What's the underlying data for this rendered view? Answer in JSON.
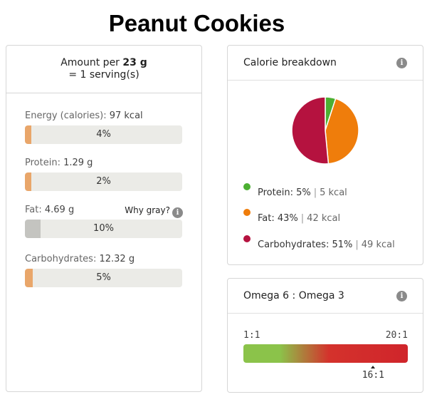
{
  "page": {
    "title": "Peanut Cookies"
  },
  "serving": {
    "line1_prefix": "Amount per ",
    "amount": "23 g",
    "line2": "= 1 serving(s)"
  },
  "nutrients": [
    {
      "label": "Energy (calories): ",
      "value": "97 kcal",
      "percent": "4%",
      "fill_fraction": 0.04,
      "color": "#e9a66a"
    },
    {
      "label": "Protein: ",
      "value": "1.29 g",
      "percent": "2%",
      "fill_fraction": 0.02,
      "color": "#e9a66a"
    },
    {
      "label": "Fat: ",
      "value": "4.69 g",
      "percent": "10%",
      "fill_fraction": 0.1,
      "color": "#c4c4c0"
    },
    {
      "label": "Carbohydrates: ",
      "value": "12.32 g",
      "percent": "5%",
      "fill_fraction": 0.05,
      "color": "#e9a66a"
    }
  ],
  "why_gray": {
    "label": "Why gray?",
    "icon": "info-icon"
  },
  "calorie": {
    "title": "Calorie breakdown",
    "icon": "info-icon",
    "items": [
      {
        "name": "Protein: ",
        "percent": "5%",
        "kcal": "5 kcal",
        "value": 5,
        "color": "#4caf32"
      },
      {
        "name": "Fat: ",
        "percent": "43%",
        "kcal": "42 kcal",
        "value": 43,
        "color": "#ef7d0b"
      },
      {
        "name": "Carbohydrates: ",
        "percent": "51%",
        "kcal": "49 kcal",
        "value": 51,
        "color": "#b5123f"
      }
    ]
  },
  "omega": {
    "title": "Omega 6 : Omega 3",
    "icon": "info-icon",
    "scale_min_label": "1:1",
    "scale_max_label": "20:1",
    "scale_min": 1,
    "scale_max": 20,
    "value": 16,
    "value_label": "16:1"
  }
}
